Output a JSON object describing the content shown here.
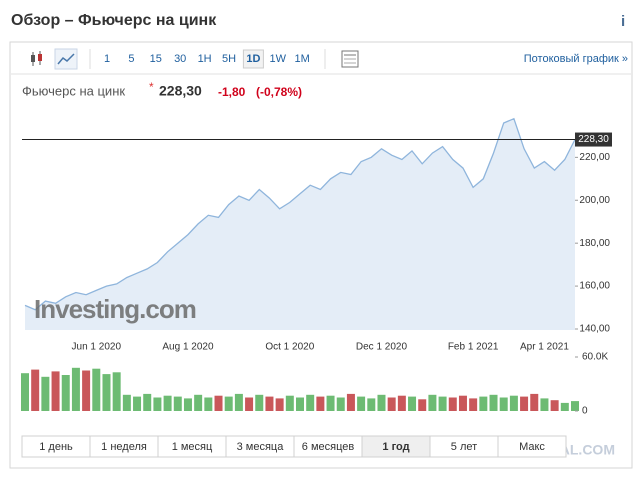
{
  "header": {
    "title": "Обзор – Фьючерс на цинк",
    "info": "i"
  },
  "toolbar": {
    "intervals": [
      "1",
      "5",
      "15",
      "30",
      "1H",
      "5H",
      "1D",
      "1W",
      "1M"
    ],
    "selected": 6,
    "link": "Потоковый график »"
  },
  "quote": {
    "name": "Фьючерс на цинк",
    "marker": "*",
    "price": "228,30",
    "change": "-1,80",
    "change_pct": "(-0,78%)"
  },
  "chart_data": {
    "type": "area",
    "categories": [
      null,
      null,
      null,
      null,
      null,
      null,
      null,
      "Jun 1 2020",
      null,
      null,
      null,
      null,
      null,
      null,
      null,
      null,
      "Aug 1 2020",
      null,
      null,
      null,
      null,
      null,
      null,
      null,
      null,
      null,
      "Oct 1 2020",
      null,
      null,
      null,
      null,
      null,
      null,
      null,
      null,
      "Dec 1 2020",
      null,
      null,
      null,
      null,
      null,
      null,
      null,
      null,
      "Feb 1 2021",
      null,
      null,
      null,
      null,
      null,
      null,
      "Apr 1 2021",
      null,
      null,
      null
    ],
    "values": [
      151,
      149,
      153,
      152,
      155,
      157,
      156,
      158,
      160,
      161,
      164,
      166,
      168,
      171,
      176,
      180,
      184,
      189,
      193,
      192,
      198,
      202,
      200,
      205,
      201,
      196,
      199,
      203,
      207,
      205,
      210,
      213,
      212,
      218,
      220,
      224,
      221,
      219,
      223,
      217,
      222,
      225,
      219,
      215,
      206,
      210,
      222,
      236,
      238,
      224,
      215,
      218,
      214,
      219,
      228.3
    ],
    "color": "#8fb5dc",
    "fill": "#e4edf7",
    "ylim": [
      140,
      243
    ],
    "yticks": [
      {
        "value": 140,
        "label": "140,00"
      },
      {
        "value": 160,
        "label": "160,00"
      },
      {
        "value": 180,
        "label": "180,00"
      },
      {
        "value": 200,
        "label": "200,00"
      },
      {
        "value": 220,
        "label": "220,00"
      }
    ],
    "volume": [
      42000,
      46000,
      38000,
      44000,
      40000,
      48000,
      45000,
      47000,
      41000,
      43000,
      18000,
      16000,
      19000,
      15000,
      17000,
      16000,
      14000,
      18000,
      15000,
      17000,
      16000,
      19000,
      15000,
      18000,
      16000,
      14000,
      17000,
      15000,
      18000,
      16000,
      17000,
      15000,
      19000,
      16000,
      14000,
      18000,
      15000,
      17000,
      16000,
      13000,
      18000,
      16000,
      15000,
      17000,
      14000,
      16000,
      18000,
      15000,
      17000,
      16000,
      19000,
      14000,
      12000,
      9000,
      11000
    ],
    "volume_colors": {
      "up": "#6dbb73",
      "down": "#c9575a"
    },
    "volume_ylim": [
      0,
      60000
    ],
    "volume_yticks": [
      {
        "value": 60000,
        "label": "60.0K"
      },
      0
    ],
    "logo": "Investing.com"
  },
  "ranges": {
    "items": [
      "1 день",
      "1 неделя",
      "1 месяц",
      "3 месяца",
      "6 месяцев",
      "1 год",
      "5 лет",
      "Макс"
    ],
    "selected": 5
  },
  "watermark": "YAPLAKAL.COM"
}
